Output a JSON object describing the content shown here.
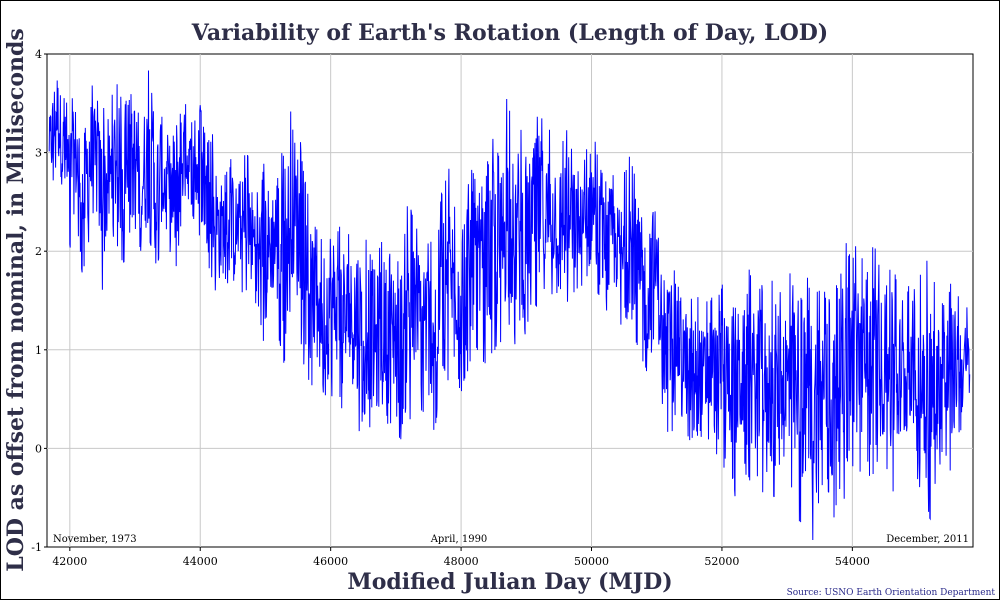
{
  "chart_data": {
    "type": "line",
    "title": "Variability of Earth's Rotation (Length of Day, LOD)",
    "xlabel": "Modified Julian Day (MJD)",
    "ylabel": "LOD as offset from nominal, in Milliseconds",
    "xlim": [
      41650,
      55850
    ],
    "ylim": [
      -1,
      4
    ],
    "xticks": [
      42000,
      44000,
      46000,
      48000,
      50000,
      52000,
      54000
    ],
    "yticks": [
      -1,
      0,
      1,
      2,
      3,
      4
    ],
    "grid": true,
    "series": [
      {
        "name": "LOD",
        "color": "#0000ff",
        "note": "Daily LOD values; digitized envelope of the plotted series",
        "x": [
          41684,
          41720,
          41800,
          41900,
          42000,
          42100,
          42200,
          42300,
          42400,
          42500,
          42600,
          42700,
          42800,
          42900,
          43000,
          43100,
          43200,
          43300,
          43400,
          43500,
          43600,
          43700,
          43800,
          43900,
          44000,
          44100,
          44200,
          44300,
          44400,
          44500,
          44600,
          44700,
          44800,
          44900,
          45000,
          45100,
          45200,
          45300,
          45400,
          45500,
          45600,
          45700,
          45800,
          45900,
          46000,
          46100,
          46200,
          46300,
          46400,
          46500,
          46600,
          46700,
          46800,
          46900,
          47000,
          47100,
          47200,
          47300,
          47400,
          47500,
          47600,
          47700,
          47800,
          47900,
          48000,
          48100,
          48200,
          48300,
          48400,
          48500,
          48600,
          48700,
          48800,
          48900,
          49000,
          49100,
          49200,
          49300,
          49400,
          49500,
          49600,
          49700,
          49800,
          49900,
          50000,
          50100,
          50200,
          50300,
          50400,
          50500,
          50600,
          50700,
          50800,
          50900,
          51000,
          51100,
          51200,
          51300,
          51400,
          51500,
          51600,
          51700,
          51800,
          51900,
          52000,
          52100,
          52200,
          52300,
          52400,
          52500,
          52600,
          52700,
          52800,
          52900,
          53000,
          53100,
          53200,
          53300,
          53400,
          53500,
          53600,
          53700,
          53800,
          53900,
          54000,
          54100,
          54200,
          54300,
          54400,
          54500,
          54600,
          54700,
          54800,
          54900,
          55000,
          55100,
          55200,
          55300,
          55400,
          55500,
          55600,
          55700,
          55800
        ],
        "high": [
          3.4,
          3.7,
          4.0,
          3.6,
          3.5,
          3.7,
          3.3,
          3.8,
          3.6,
          3.5,
          3.4,
          3.8,
          3.6,
          3.5,
          3.8,
          3.5,
          3.9,
          3.4,
          3.6,
          3.2,
          3.5,
          3.8,
          3.4,
          3.3,
          3.5,
          3.1,
          3.2,
          2.9,
          2.8,
          3.0,
          2.7,
          3.1,
          2.8,
          2.6,
          3.0,
          2.8,
          3.2,
          2.9,
          3.6,
          3.3,
          2.8,
          2.4,
          2.5,
          2.3,
          2.6,
          2.2,
          2.4,
          2.1,
          2.5,
          2.1,
          2.3,
          2.0,
          2.2,
          2.0,
          2.3,
          2.1,
          2.6,
          2.2,
          2.4,
          2.1,
          2.3,
          2.6,
          2.9,
          2.5,
          2.7,
          3.0,
          2.8,
          2.6,
          2.9,
          3.2,
          3.0,
          3.6,
          3.2,
          3.4,
          3.0,
          3.3,
          3.5,
          3.2,
          3.4,
          3.0,
          3.3,
          3.1,
          2.8,
          3.0,
          3.3,
          3.0,
          2.7,
          2.9,
          2.6,
          2.8,
          3.0,
          2.7,
          2.5,
          2.8,
          2.6,
          1.8,
          1.6,
          1.9,
          1.7,
          1.5,
          1.7,
          1.4,
          1.6,
          1.5,
          1.7,
          1.6,
          1.8,
          1.5,
          1.9,
          1.6,
          1.7,
          1.5,
          1.8,
          1.6,
          1.9,
          1.7,
          1.5,
          1.8,
          1.6,
          1.7,
          1.6,
          1.5,
          1.8,
          2.1,
          1.9,
          2.3,
          1.7,
          2.2,
          1.9,
          1.6,
          1.9,
          1.7,
          1.5,
          1.8,
          1.6,
          2.1,
          1.8,
          1.6,
          1.5,
          1.7,
          1.6,
          1.4,
          1.5
        ],
        "low": [
          2.8,
          2.6,
          2.9,
          2.4,
          2.0,
          2.3,
          1.7,
          2.1,
          2.2,
          1.6,
          2.0,
          2.1,
          1.9,
          1.8,
          2.2,
          1.9,
          2.0,
          1.5,
          2.1,
          1.9,
          1.6,
          2.2,
          2.4,
          2.3,
          2.1,
          1.9,
          1.6,
          1.5,
          1.7,
          1.4,
          1.8,
          1.3,
          1.5,
          1.4,
          0.9,
          1.4,
          1.1,
          0.8,
          1.5,
          1.2,
          0.8,
          0.6,
          0.9,
          0.5,
          0.4,
          0.7,
          0.2,
          0.6,
          0.1,
          0.3,
          0.2,
          0.0,
          0.4,
          0.2,
          0.3,
          -0.1,
          0.2,
          0.4,
          0.3,
          0.5,
          0.1,
          0.8,
          0.6,
          0.9,
          0.5,
          0.7,
          1.0,
          0.9,
          0.8,
          0.9,
          1.0,
          1.2,
          1.1,
          0.9,
          1.2,
          1.5,
          1.3,
          1.4,
          1.5,
          1.6,
          1.4,
          1.5,
          1.6,
          1.3,
          1.7,
          1.5,
          1.4,
          1.2,
          1.5,
          0.9,
          1.3,
          1.0,
          0.8,
          0.6,
          1.1,
          0.3,
          0.0,
          0.4,
          0.3,
          0.0,
          0.2,
          -0.2,
          0.1,
          -0.1,
          -0.3,
          0.0,
          -0.5,
          -0.1,
          -0.4,
          -0.2,
          -0.5,
          -0.3,
          -0.6,
          -0.1,
          -0.7,
          -0.4,
          -0.9,
          -0.2,
          -1.0,
          -0.5,
          -0.3,
          -0.8,
          -0.4,
          -0.6,
          -0.2,
          -0.3,
          -0.1,
          -0.4,
          -0.2,
          -0.1,
          -0.5,
          -0.3,
          -0.2,
          0.1,
          -0.4,
          -0.6,
          -0.8,
          -0.3,
          0.0,
          -0.3,
          0.1,
          0.2,
          0.0
        ]
      }
    ],
    "annotations": [
      {
        "text": "November, 1973",
        "x": 41990
      },
      {
        "text": "April, 1990",
        "x": 48000
      },
      {
        "text": "December, 2011",
        "x": 55900
      }
    ],
    "source": "Source: USNO Earth Orientation Department"
  }
}
